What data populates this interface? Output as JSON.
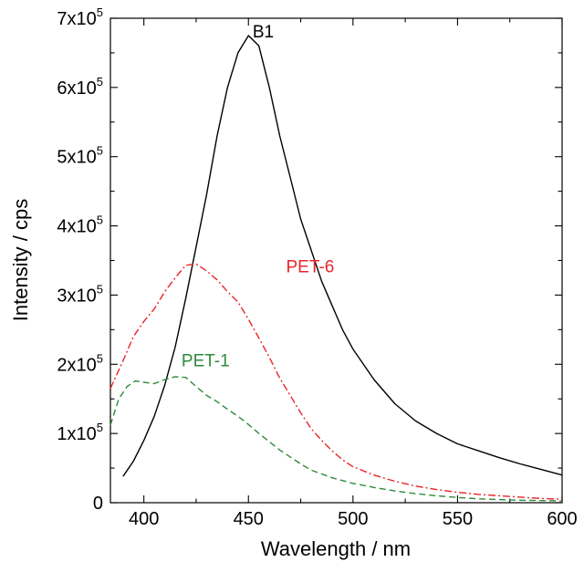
{
  "chart_data": {
    "type": "line",
    "xlabel": "Wavelength / nm",
    "ylabel": "Intensity / cps",
    "xlim": [
      384,
      600
    ],
    "ylim": [
      0,
      700000
    ],
    "x_ticks": [
      {
        "value": 400,
        "label": "400"
      },
      {
        "value": 450,
        "label": "450"
      },
      {
        "value": 500,
        "label": "500"
      },
      {
        "value": 550,
        "label": "550"
      },
      {
        "value": 600,
        "label": "600"
      }
    ],
    "y_ticks": [
      {
        "value": 0,
        "label": "0"
      },
      {
        "value": 100000,
        "mantissa": "1x10",
        "exp": "5"
      },
      {
        "value": 200000,
        "mantissa": "2x10",
        "exp": "5"
      },
      {
        "value": 300000,
        "mantissa": "3x10",
        "exp": "5"
      },
      {
        "value": 400000,
        "mantissa": "4x10",
        "exp": "5"
      },
      {
        "value": 500000,
        "mantissa": "5x10",
        "exp": "5"
      },
      {
        "value": 600000,
        "mantissa": "6x10",
        "exp": "5"
      },
      {
        "value": 700000,
        "mantissa": "7x10",
        "exp": "5"
      }
    ],
    "grid": false,
    "series": [
      {
        "name": "B1",
        "color": "#000000",
        "dash": "solid",
        "label_at": [
          452,
          672000
        ],
        "x": [
          390,
          395,
          400,
          405,
          410,
          415,
          420,
          425,
          430,
          435,
          440,
          445,
          450,
          455,
          460,
          465,
          470,
          475,
          480,
          485,
          490,
          495,
          500,
          510,
          520,
          530,
          540,
          550,
          560,
          570,
          580,
          590,
          600
        ],
        "y": [
          38000,
          60000,
          90000,
          125000,
          170000,
          225000,
          295000,
          370000,
          445000,
          530000,
          600000,
          650000,
          675000,
          660000,
          600000,
          530000,
          470000,
          410000,
          365000,
          320000,
          285000,
          250000,
          222000,
          178000,
          143000,
          118000,
          100000,
          85000,
          75000,
          65000,
          56000,
          48000,
          40000
        ]
      },
      {
        "name": "PET-6",
        "color": "#e8262a",
        "dash": "dashdot",
        "label_at": [
          468,
          333000
        ],
        "x": [
          384,
          390,
          395,
          400,
          405,
          410,
          415,
          420,
          425,
          430,
          435,
          440,
          445,
          450,
          455,
          460,
          465,
          470,
          475,
          480,
          485,
          490,
          495,
          500,
          510,
          520,
          530,
          540,
          550,
          560,
          570,
          580,
          590,
          600
        ],
        "y": [
          165000,
          205000,
          240000,
          262000,
          280000,
          305000,
          325000,
          343000,
          345000,
          335000,
          322000,
          305000,
          290000,
          265000,
          238000,
          210000,
          180000,
          155000,
          130000,
          107000,
          90000,
          75000,
          62000,
          52000,
          40000,
          31000,
          24000,
          19000,
          15000,
          12000,
          10000,
          8000,
          6000,
          5000
        ]
      },
      {
        "name": "PET-1",
        "color": "#2e8b3a",
        "dash": "dashed",
        "label_at": [
          418,
          197000
        ],
        "x": [
          384,
          388,
          392,
          396,
          400,
          405,
          410,
          415,
          420,
          425,
          430,
          435,
          440,
          445,
          450,
          455,
          460,
          465,
          470,
          475,
          480,
          490,
          500,
          510,
          520,
          530,
          540,
          550,
          560,
          570,
          580,
          590,
          600
        ],
        "y": [
          112000,
          150000,
          168000,
          176000,
          174000,
          172000,
          178000,
          182000,
          181000,
          168000,
          155000,
          146000,
          135000,
          125000,
          113000,
          100000,
          88000,
          76000,
          66000,
          56000,
          47000,
          36000,
          28000,
          22000,
          17000,
          13000,
          10000,
          7500,
          5500,
          4500,
          3500,
          3000,
          2500
        ]
      }
    ]
  }
}
